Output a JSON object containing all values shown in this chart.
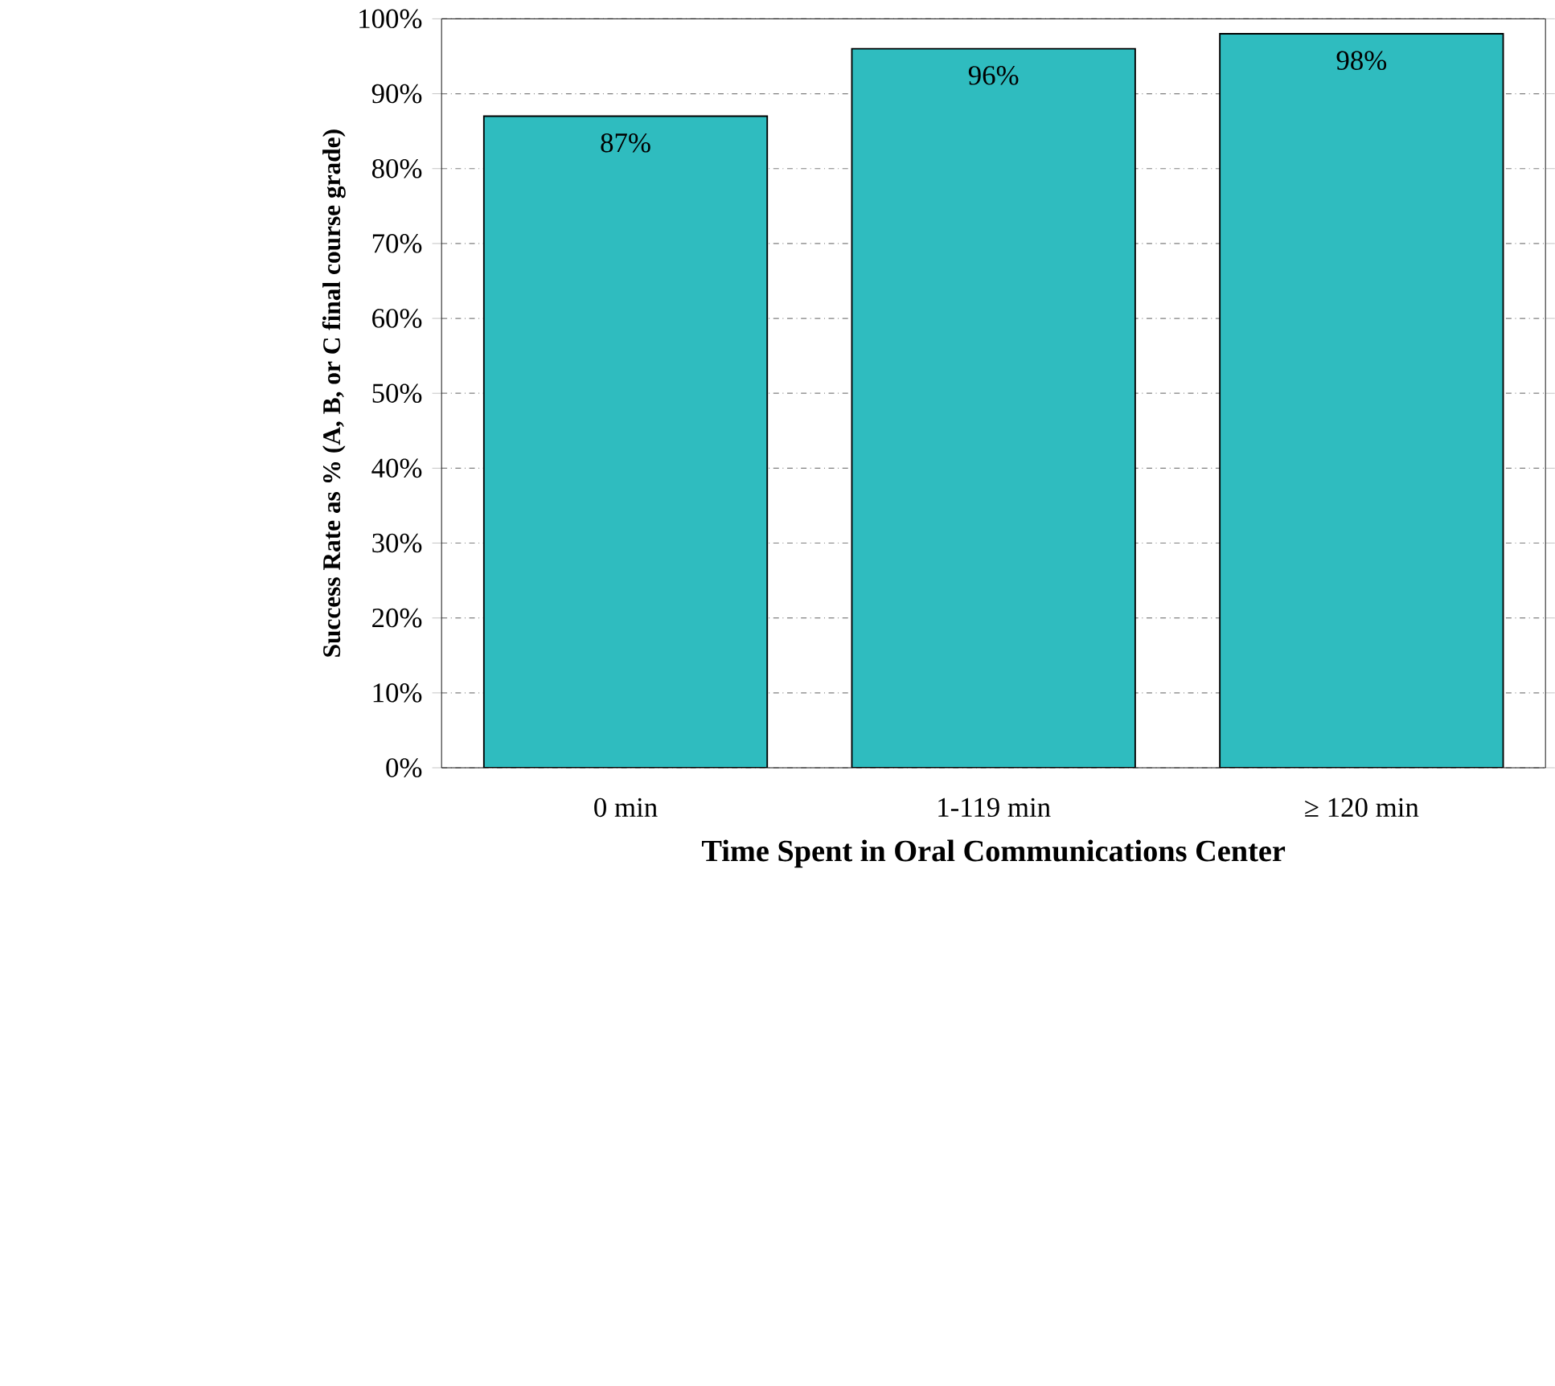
{
  "chart_data": {
    "type": "bar",
    "xlabel": "Time Spent in Oral Communications Center",
    "ylabel": "Success Rate as % (A, B, or C final course grade)",
    "categories": [
      "0 min",
      "1-119 min",
      "≥ 120 min"
    ],
    "values": [
      87,
      96,
      98
    ],
    "value_labels": [
      "87%",
      "96%",
      "98%"
    ],
    "color": "#2fbcbf",
    "ylim": [
      0,
      100
    ],
    "yticks": [
      {
        "value": 0,
        "label": "0%"
      },
      {
        "value": 10,
        "label": "10%"
      },
      {
        "value": 20,
        "label": "20%"
      },
      {
        "value": 30,
        "label": "30%"
      },
      {
        "value": 40,
        "label": "40%"
      },
      {
        "value": 50,
        "label": "50%"
      },
      {
        "value": 60,
        "label": "60%"
      },
      {
        "value": 70,
        "label": "70%"
      },
      {
        "value": 80,
        "label": "80%"
      },
      {
        "value": 90,
        "label": "90%"
      },
      {
        "value": 100,
        "label": "100%"
      }
    ],
    "grid": "y"
  }
}
